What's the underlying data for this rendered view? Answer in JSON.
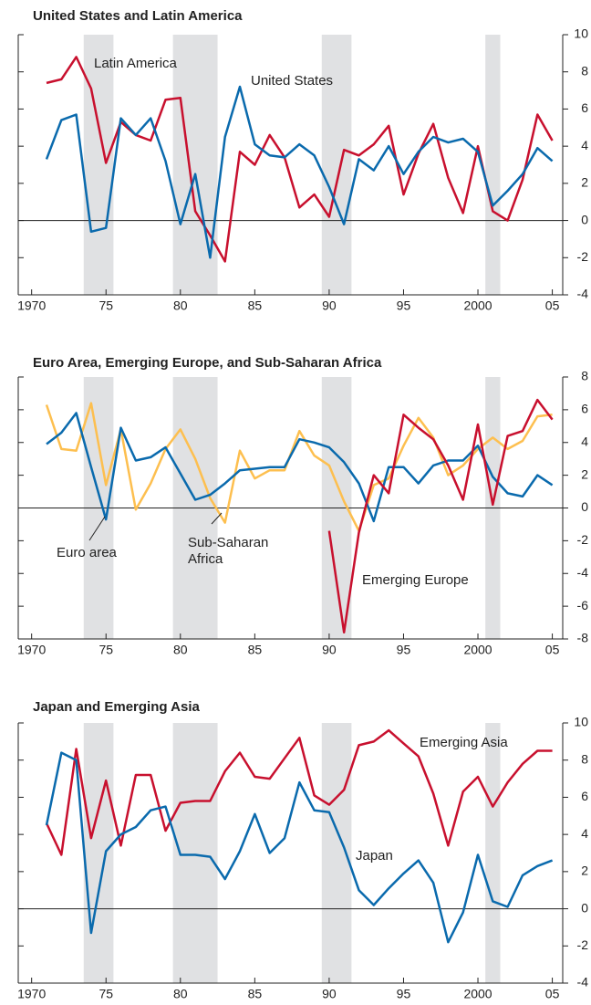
{
  "chart_data": [
    {
      "type": "line",
      "title": "United States and Latin America",
      "x": [
        1971,
        1972,
        1973,
        1974,
        1975,
        1976,
        1977,
        1978,
        1979,
        1980,
        1981,
        1982,
        1983,
        1984,
        1985,
        1986,
        1987,
        1988,
        1989,
        1990,
        1991,
        1992,
        1993,
        1994,
        1995,
        1996,
        1997,
        1998,
        1999,
        2000,
        2001,
        2002,
        2003,
        2004,
        2005
      ],
      "series": [
        {
          "name": "Latin America",
          "color": "#c8102e",
          "values": [
            7.4,
            7.6,
            8.8,
            7.1,
            3.1,
            5.3,
            4.6,
            4.3,
            6.5,
            6.6,
            0.5,
            -0.8,
            -2.2,
            3.7,
            3.0,
            4.6,
            3.4,
            0.7,
            1.4,
            0.2,
            3.8,
            3.5,
            4.1,
            5.1,
            1.4,
            3.6,
            5.2,
            2.3,
            0.4,
            4.0,
            0.5,
            0.0,
            2.2,
            5.7,
            4.3
          ]
        },
        {
          "name": "United States",
          "color": "#0a6aad",
          "values": [
            3.3,
            5.4,
            5.7,
            -0.6,
            -0.4,
            5.5,
            4.6,
            5.5,
            3.2,
            -0.2,
            2.5,
            -2.0,
            4.5,
            7.2,
            4.1,
            3.5,
            3.4,
            4.1,
            3.5,
            1.8,
            -0.2,
            3.3,
            2.7,
            4.0,
            2.5,
            3.7,
            4.5,
            4.2,
            4.4,
            3.7,
            0.8,
            1.6,
            2.5,
            3.9,
            3.2
          ]
        }
      ],
      "xlim": [
        1969.1,
        2005.7
      ],
      "xticks": [
        1970,
        {
          "value": 1975,
          "label": "75"
        },
        {
          "value": 1980,
          "label": "80"
        },
        {
          "value": 1985,
          "label": "85"
        },
        {
          "value": 1990,
          "label": "90"
        },
        {
          "value": 1995,
          "label": "95"
        },
        2000,
        {
          "value": 2005,
          "label": "05"
        }
      ],
      "ylim": [
        -4,
        10
      ],
      "yticks": [
        -4,
        -2,
        0,
        2,
        4,
        6,
        8,
        10
      ],
      "shaded": [
        [
          1973.5,
          1975.5
        ],
        [
          1979.5,
          1982.5
        ],
        [
          1989.5,
          1991.5
        ],
        [
          2000.5,
          2001.5
        ]
      ],
      "zero_line": true
    },
    {
      "type": "line",
      "title": "Euro Area, Emerging Europe, and Sub-Saharan Africa",
      "x": [
        1971,
        1972,
        1973,
        1974,
        1975,
        1976,
        1977,
        1978,
        1979,
        1980,
        1981,
        1982,
        1983,
        1984,
        1985,
        1986,
        1987,
        1988,
        1989,
        1990,
        1991,
        1992,
        1993,
        1994,
        1995,
        1996,
        1997,
        1998,
        1999,
        2000,
        2001,
        2002,
        2003,
        2004,
        2005
      ],
      "series": [
        {
          "name": "Sub-Saharan Africa",
          "color": "#fdbf4f",
          "values": [
            6.3,
            3.6,
            3.5,
            6.4,
            1.4,
            4.8,
            -0.1,
            1.5,
            3.6,
            4.8,
            3.0,
            0.6,
            -0.9,
            3.5,
            1.8,
            2.3,
            2.3,
            4.7,
            3.2,
            2.6,
            0.4,
            -1.4,
            1.4,
            1.8,
            3.8,
            5.5,
            4.3,
            2.0,
            2.6,
            3.6,
            4.3,
            3.6,
            4.1,
            5.6,
            5.7
          ]
        },
        {
          "name": "Euro area",
          "color": "#0a6aad",
          "values": [
            3.9,
            4.6,
            5.8,
            2.5,
            -0.7,
            4.9,
            2.9,
            3.1,
            3.7,
            2.1,
            0.5,
            0.8,
            1.5,
            2.3,
            2.4,
            2.5,
            2.5,
            4.2,
            4.0,
            3.7,
            2.8,
            1.5,
            -0.8,
            2.5,
            2.5,
            1.5,
            2.6,
            2.9,
            2.9,
            3.8,
            1.9,
            0.9,
            0.7,
            2.0,
            1.4
          ]
        },
        {
          "name": "Emerging Europe",
          "color": "#c8102e",
          "values": [
            null,
            null,
            null,
            null,
            null,
            null,
            null,
            null,
            null,
            null,
            null,
            null,
            null,
            null,
            null,
            null,
            null,
            null,
            null,
            -1.4,
            -7.6,
            -1.5,
            2.0,
            0.9,
            5.7,
            4.9,
            4.2,
            2.6,
            0.5,
            5.1,
            0.2,
            4.4,
            4.7,
            6.6,
            5.4
          ]
        }
      ],
      "xlim": [
        1969.1,
        2005.7
      ],
      "xticks": [
        1970,
        {
          "value": 1975,
          "label": "75"
        },
        {
          "value": 1980,
          "label": "80"
        },
        {
          "value": 1985,
          "label": "85"
        },
        {
          "value": 1990,
          "label": "90"
        },
        {
          "value": 1995,
          "label": "95"
        },
        2000,
        {
          "value": 2005,
          "label": "05"
        }
      ],
      "ylim": [
        -8,
        8
      ],
      "yticks": [
        -8,
        -6,
        -4,
        -2,
        0,
        2,
        4,
        6,
        8
      ],
      "shaded": [
        [
          1973.5,
          1975.5
        ],
        [
          1979.5,
          1982.5
        ],
        [
          1989.5,
          1991.5
        ],
        [
          2000.5,
          2001.5
        ]
      ],
      "zero_line": true
    },
    {
      "type": "line",
      "title": "Japan and Emerging Asia",
      "x": [
        1971,
        1972,
        1973,
        1974,
        1975,
        1976,
        1977,
        1978,
        1979,
        1980,
        1981,
        1982,
        1983,
        1984,
        1985,
        1986,
        1987,
        1988,
        1989,
        1990,
        1991,
        1992,
        1993,
        1994,
        1995,
        1996,
        1997,
        1998,
        1999,
        2000,
        2001,
        2002,
        2003,
        2004,
        2005
      ],
      "series": [
        {
          "name": "Emerging Asia",
          "color": "#c8102e",
          "values": [
            4.6,
            2.9,
            8.6,
            3.8,
            6.9,
            3.4,
            7.2,
            7.2,
            4.2,
            5.7,
            5.8,
            5.8,
            7.4,
            8.4,
            7.1,
            7.0,
            8.1,
            9.2,
            6.1,
            5.6,
            6.4,
            8.8,
            9.0,
            9.6,
            8.9,
            8.2,
            6.2,
            3.4,
            6.3,
            7.1,
            5.5,
            6.8,
            7.8,
            8.5,
            8.5
          ]
        },
        {
          "name": "Japan",
          "color": "#0a6aad",
          "values": [
            4.5,
            8.4,
            8.0,
            -1.3,
            3.1,
            4.0,
            4.4,
            5.3,
            5.5,
            2.9,
            2.9,
            2.8,
            1.6,
            3.1,
            5.1,
            3.0,
            3.8,
            6.8,
            5.3,
            5.2,
            3.3,
            1.0,
            0.2,
            1.1,
            1.9,
            2.6,
            1.4,
            -1.8,
            -0.2,
            2.9,
            0.4,
            0.1,
            1.8,
            2.3,
            2.6
          ]
        }
      ],
      "xlim": [
        1969.1,
        2005.7
      ],
      "xticks": [
        1970,
        {
          "value": 1975,
          "label": "75"
        },
        {
          "value": 1980,
          "label": "80"
        },
        {
          "value": 1985,
          "label": "85"
        },
        {
          "value": 1990,
          "label": "90"
        },
        {
          "value": 1995,
          "label": "95"
        },
        2000,
        {
          "value": 2005,
          "label": "05"
        }
      ],
      "ylim": [
        -4,
        10
      ],
      "yticks": [
        -4,
        -2,
        0,
        2,
        4,
        6,
        8,
        10
      ],
      "shaded": [
        [
          1973.5,
          1975.5
        ],
        [
          1979.5,
          1982.5
        ],
        [
          1989.5,
          1991.5
        ],
        [
          2000.5,
          2001.5
        ]
      ],
      "zero_line": true
    }
  ]
}
